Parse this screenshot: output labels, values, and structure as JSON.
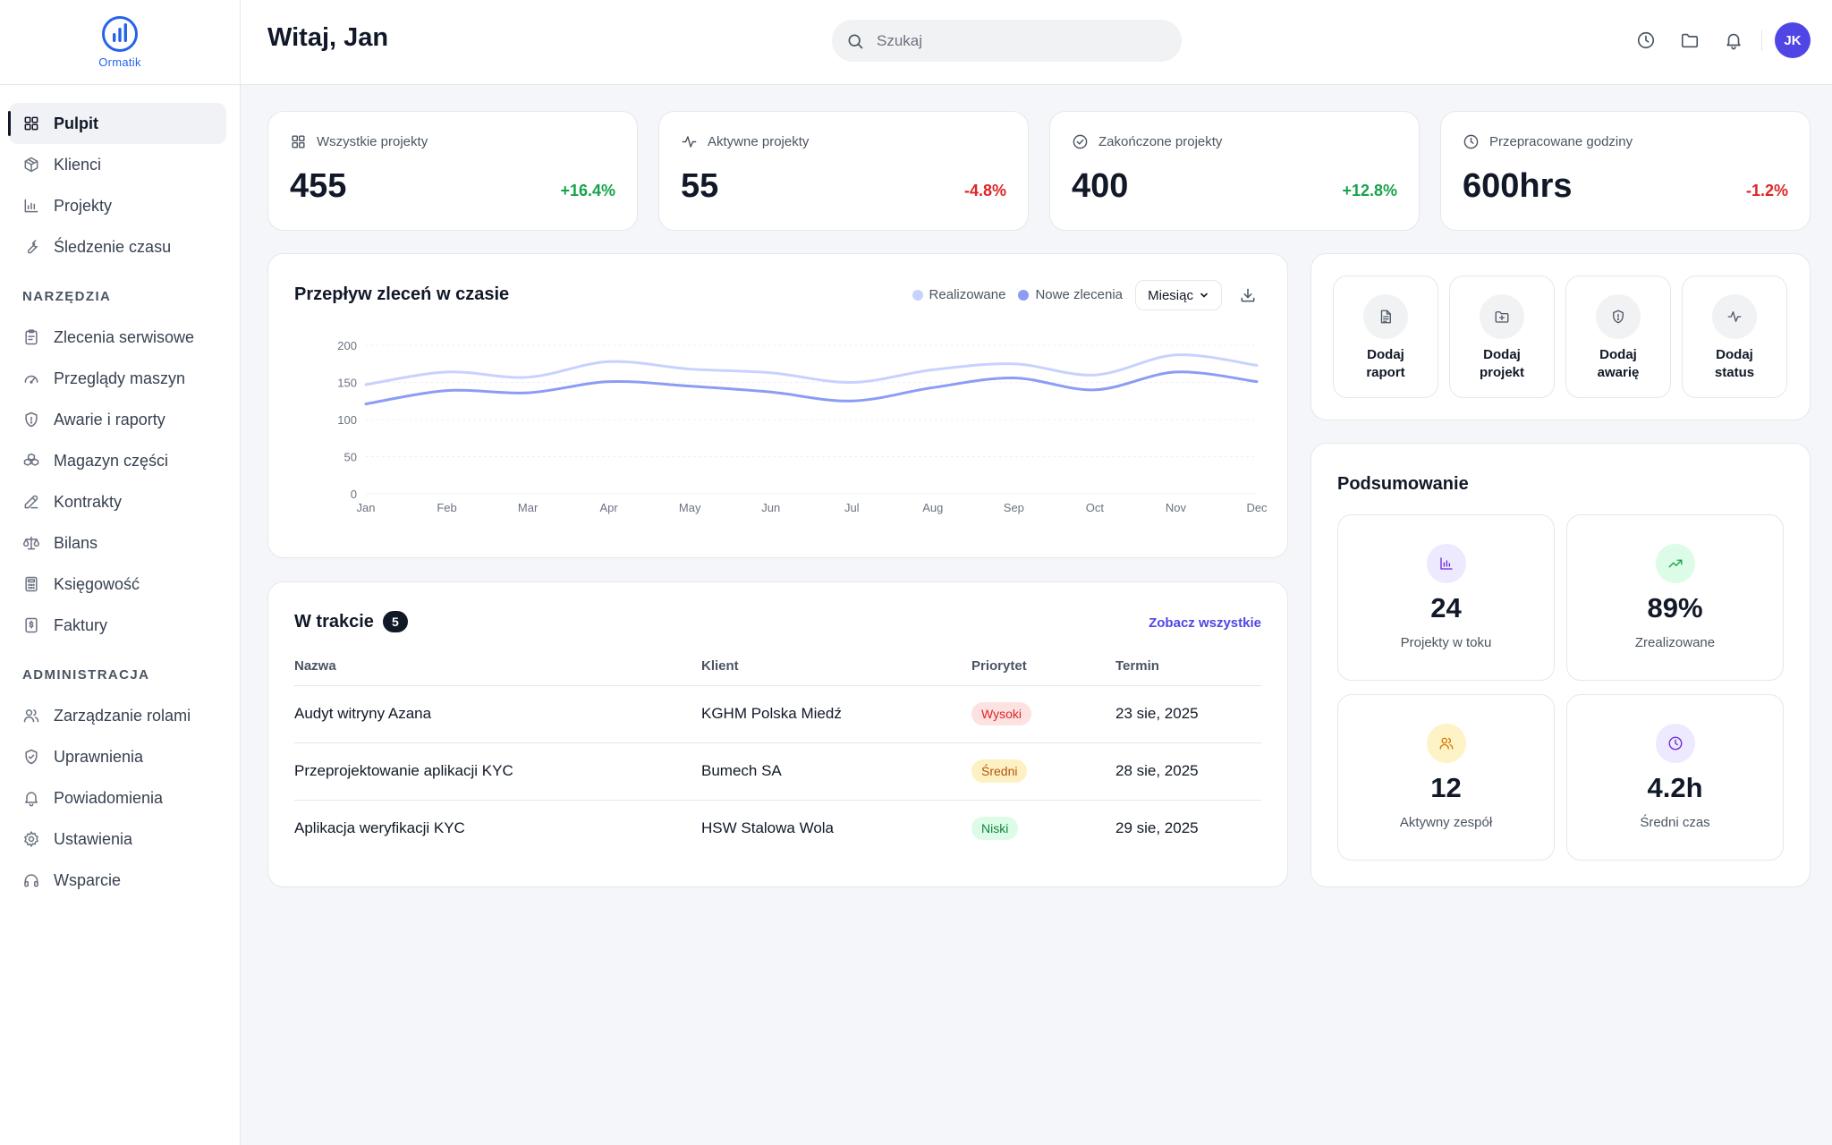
{
  "brand": {
    "name": "Ormatik",
    "color": "#2563eb"
  },
  "sidebar": {
    "main_items": [
      {
        "label": "Pulpit",
        "icon": "grid-icon",
        "active": true
      },
      {
        "label": "Klienci",
        "icon": "box-icon"
      },
      {
        "label": "Projekty",
        "icon": "chart-bars-icon"
      },
      {
        "label": "Śledzenie czasu",
        "icon": "wrench-icon"
      }
    ],
    "tools_title": "NARZĘDZIA",
    "tools_items": [
      {
        "label": "Zlecenia serwisowe",
        "icon": "clipboard-icon"
      },
      {
        "label": "Przeglądy maszyn",
        "icon": "gauge-icon"
      },
      {
        "label": "Awarie i raporty",
        "icon": "shield-icon"
      },
      {
        "label": "Magazyn części",
        "icon": "boxes-icon"
      },
      {
        "label": "Kontrakty",
        "icon": "edit-icon"
      },
      {
        "label": "Bilans",
        "icon": "scale-icon"
      },
      {
        "label": "Księgowość",
        "icon": "calculator-icon"
      },
      {
        "label": "Faktury",
        "icon": "invoice-icon"
      }
    ],
    "admin_title": "ADMINISTRACJA",
    "admin_items": [
      {
        "label": "Zarządzanie rolami",
        "icon": "users-icon"
      },
      {
        "label": "Uprawnienia",
        "icon": "shield-check-icon"
      },
      {
        "label": "Powiadomienia",
        "icon": "bell-icon"
      },
      {
        "label": "Ustawienia",
        "icon": "gear-icon"
      },
      {
        "label": "Wsparcie",
        "icon": "headphones-icon"
      }
    ]
  },
  "header": {
    "greeting": "Witaj, Jan",
    "search_placeholder": "Szukaj",
    "avatar_initials": "JK",
    "avatar_color": "#4f46e5"
  },
  "stats": [
    {
      "label": "Wszystkie projekty",
      "icon": "grid-icon",
      "value": "455",
      "change": "+16.4%",
      "trend": "up"
    },
    {
      "label": "Aktywne projekty",
      "icon": "activity-icon",
      "value": "55",
      "change": "-4.8%",
      "trend": "down"
    },
    {
      "label": "Zakończone projekty",
      "icon": "check-circle-icon",
      "value": "400",
      "change": "+12.8%",
      "trend": "up"
    },
    {
      "label": "Przepracowane godziny",
      "icon": "clock-icon",
      "value": "600hrs",
      "change": "-1.2%",
      "trend": "down"
    }
  ],
  "chart": {
    "title": "Przepływ zleceń w czasie",
    "period": "Miesiąc",
    "series_colors": [
      "#c7d2fe",
      "#8b9cf4"
    ]
  },
  "chart_data": {
    "type": "line",
    "categories": [
      "Jan",
      "Feb",
      "Mar",
      "Apr",
      "May",
      "Jun",
      "Jul",
      "Aug",
      "Sep",
      "Oct",
      "Nov",
      "Dec"
    ],
    "series": [
      {
        "name": "Realizowane",
        "values": [
          147,
          164,
          157,
          178,
          168,
          163,
          150,
          167,
          175,
          160,
          187,
          173
        ]
      },
      {
        "name": "Nowe zlecenia",
        "values": [
          121,
          139,
          136,
          151,
          145,
          137,
          125,
          143,
          156,
          140,
          164,
          151
        ]
      }
    ],
    "ylim": [
      0,
      200
    ],
    "yticks": [
      0,
      50,
      100,
      150,
      200
    ],
    "grid": true,
    "legend": "top-right"
  },
  "in_progress": {
    "title": "W trakcie",
    "count": "5",
    "see_all": "Zobacz wszystkie",
    "columns": [
      "Nazwa",
      "Klient",
      "Priorytet",
      "Termin"
    ],
    "rows": [
      {
        "name": "Audyt witryny Azana",
        "client": "KGHM Polska Miedź",
        "priority": "Wysoki",
        "priority_bg": "#fde2e2",
        "priority_color": "#dc2626",
        "due": "23 sie, 2025"
      },
      {
        "name": "Przeprojektowanie aplikacji KYC",
        "client": "Bumech SA",
        "priority": "Średni",
        "priority_bg": "#fdf1c4",
        "priority_color": "#b45309",
        "due": "28 sie, 2025"
      },
      {
        "name": "Aplikacja weryfikacji KYC",
        "client": "HSW Stalowa Wola",
        "priority": "Niski",
        "priority_bg": "#dcfce7",
        "priority_color": "#15803d",
        "due": "29 sie, 2025"
      }
    ]
  },
  "quick_actions": [
    {
      "line1": "Dodaj",
      "line2": "raport",
      "icon": "file-icon"
    },
    {
      "line1": "Dodaj",
      "line2": "projekt",
      "icon": "folder-plus-icon"
    },
    {
      "line1": "Dodaj",
      "line2": "awarię",
      "icon": "shield-alert-icon"
    },
    {
      "line1": "Dodaj",
      "line2": "status",
      "icon": "activity-icon"
    }
  ],
  "summary": {
    "title": "Podsumowanie",
    "tiles": [
      {
        "value": "24",
        "label": "Projekty w toku",
        "icon": "bar-chart-icon",
        "bg": "#ede9fe",
        "color": "#6d28d9"
      },
      {
        "value": "89%",
        "label": "Zrealizowane",
        "icon": "trending-up-icon",
        "bg": "#dcfce7",
        "color": "#16a34a"
      },
      {
        "value": "12",
        "label": "Aktywny zespół",
        "icon": "users-icon",
        "bg": "#fef3c7",
        "color": "#d97706"
      },
      {
        "value": "4.2h",
        "label": "Średni czas",
        "icon": "clock-icon",
        "bg": "#ede9fe",
        "color": "#6d28d9"
      }
    ]
  }
}
